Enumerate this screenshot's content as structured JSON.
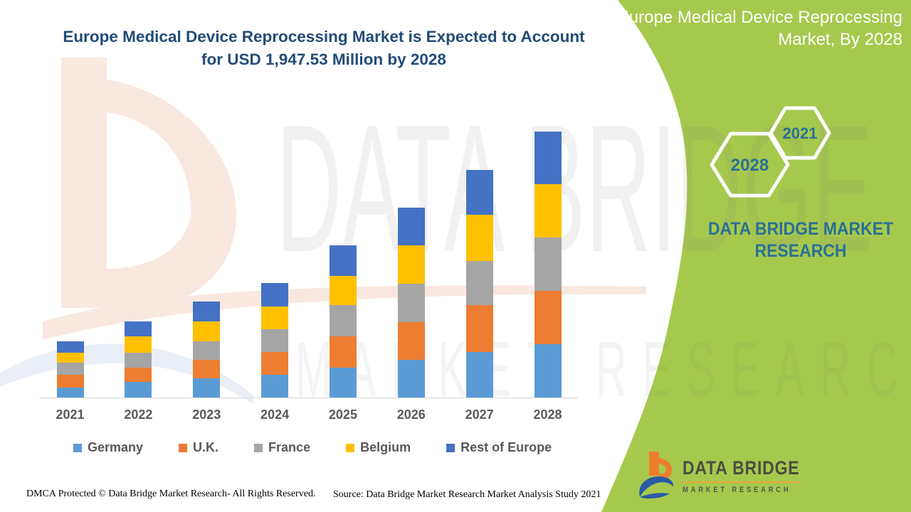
{
  "page": {
    "title_line1": "Europe Medical Device Reprocessing Market is Expected to Account",
    "title_line2": "for USD 1,947.53 Million by 2028"
  },
  "side_panel": {
    "heading_line1": "Europe Medical Device Reprocessing",
    "heading_line2": "Market, By 2028",
    "hexagon_large_label": "2028",
    "hexagon_small_label": "2021",
    "brand_line1": "DATA BRIDGE MARKET",
    "brand_line2": "RESEARCH"
  },
  "watermark": {
    "line1": "DATA BRIDGE",
    "line2": "MARKET RESEARCH"
  },
  "logo": {
    "title": "DATA BRIDGE",
    "subtitle": "MARKET RESEARCH"
  },
  "footer": {
    "dmca": "DMCA Protected © Data Bridge Market Research- All Rights Reserved.",
    "source": "Source: Data Bridge Market Research Market Analysis Study 2021"
  },
  "colors": {
    "green": "#a6c94d",
    "teal": "#2a7096",
    "navy": "#234b77",
    "axis_line": "#d9d9d9",
    "label_gray": "#595959"
  },
  "chart_data": {
    "type": "bar",
    "stacked": true,
    "title": "Europe Medical Device Reprocessing Market is Expected to Account for USD 1,947.53 Million by 2028",
    "unit": "USD Million",
    "categories": [
      "2021",
      "2022",
      "2023",
      "2024",
      "2025",
      "2026",
      "2027",
      "2028"
    ],
    "series": [
      {
        "name": "Germany",
        "color": "#5B9BD5",
        "values": [
          74,
          113,
          139,
          165,
          216,
          274,
          333,
          388
        ]
      },
      {
        "name": "U.K.",
        "color": "#ED7D31",
        "values": [
          91,
          107,
          139,
          168,
          229,
          276,
          343,
          392
        ]
      },
      {
        "name": "France",
        "color": "#A5A5A5",
        "values": [
          88,
          108,
          134,
          168,
          231,
          283,
          321,
          390
        ]
      },
      {
        "name": "Belgium",
        "color": "#FFC000",
        "values": [
          74,
          121,
          144,
          165,
          215,
          281,
          337,
          388
        ]
      },
      {
        "name": "Rest of Europe",
        "color": "#4472C4",
        "values": [
          85,
          108,
          146,
          170,
          222,
          277,
          331,
          389.53
        ]
      }
    ],
    "totals": [
      412,
      557,
      702,
      836,
      1113,
      1391,
      1665,
      1947.53
    ],
    "ylim": [
      0,
      1950
    ],
    "grid": false,
    "x_axis_labels_visible": true,
    "y_axis_labels_visible": false,
    "legend_position": "bottom"
  }
}
